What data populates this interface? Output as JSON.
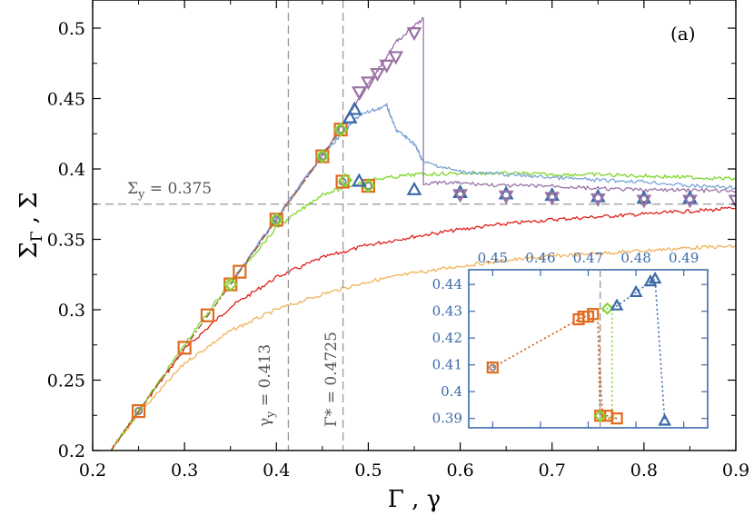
{
  "chart_data": {
    "type": "line",
    "panel_label": "(a)",
    "xlabel_main": "Γ",
    "xlabel_sep": " , ",
    "xlabel_alt": "γ",
    "ylabel_main": "Σ",
    "ylabel_sub": "Γ",
    "ylabel_sep": " , ",
    "ylabel_alt": "Σ",
    "xlim": [
      0.2,
      0.9
    ],
    "ylim": [
      0.2,
      0.52
    ],
    "xticks": [
      0.2,
      0.3,
      0.4,
      0.5,
      0.6,
      0.7,
      0.8,
      0.9
    ],
    "xtick_labels": [
      "0.2",
      "0.3",
      "0.4",
      "0.5",
      "0.6",
      "0.7",
      "0.8",
      "0.9"
    ],
    "yticks": [
      0.2,
      0.25,
      0.3,
      0.35,
      0.4,
      0.45,
      0.5
    ],
    "ytick_labels": [
      "0.2",
      "0.25",
      "0.3",
      "0.35",
      "0.4",
      "0.45",
      "0.5"
    ],
    "reference_lines": {
      "sigma_y": 0.375,
      "gamma_y": 0.413,
      "gamma_star": 0.4725
    },
    "annotations": {
      "sigma_y_main": "Σ",
      "sigma_y_sub": "y",
      "sigma_y_value": " = 0.375",
      "gamma_y_main": "γ",
      "gamma_y_sub": "y",
      "gamma_y_value": " = 0.413",
      "gamma_star_main": "Γ*",
      "gamma_star_value": " = 0.4725"
    },
    "colors": {
      "red": "#e0201b",
      "orange": "#f2b25c",
      "green": "#7fd62a",
      "blue": "#7aa4d6",
      "purple": "#9a72a6",
      "brown": "#9a5c2e",
      "square": "#e06a1e",
      "darkblue": "#3b6aa8",
      "gray": "#888888"
    },
    "series": [
      {
        "name": "red curve",
        "color": "red",
        "style": "noisy",
        "x": [
          0.22,
          0.25,
          0.3,
          0.35,
          0.4,
          0.45,
          0.5,
          0.55,
          0.6,
          0.65,
          0.7,
          0.75,
          0.8,
          0.85,
          0.9
        ],
        "y": [
          0.2,
          0.228,
          0.272,
          0.302,
          0.323,
          0.337,
          0.346,
          0.352,
          0.357,
          0.361,
          0.364,
          0.366,
          0.368,
          0.37,
          0.372
        ]
      },
      {
        "name": "orange curve",
        "color": "orange",
        "style": "noisy",
        "x": [
          0.22,
          0.25,
          0.3,
          0.35,
          0.4,
          0.45,
          0.5,
          0.55,
          0.6,
          0.65,
          0.7,
          0.75,
          0.8,
          0.85,
          0.9
        ],
        "y": [
          0.2,
          0.226,
          0.262,
          0.285,
          0.3,
          0.311,
          0.32,
          0.326,
          0.331,
          0.335,
          0.338,
          0.34,
          0.342,
          0.344,
          0.345
        ]
      },
      {
        "name": "green curve",
        "color": "green",
        "style": "noisy",
        "x": [
          0.22,
          0.25,
          0.3,
          0.35,
          0.4,
          0.45,
          0.5,
          0.55,
          0.6,
          0.65,
          0.7,
          0.75,
          0.8,
          0.85,
          0.9
        ],
        "y": [
          0.2,
          0.228,
          0.275,
          0.32,
          0.358,
          0.382,
          0.392,
          0.396,
          0.397,
          0.397,
          0.396,
          0.396,
          0.395,
          0.394,
          0.393
        ]
      },
      {
        "name": "blue curve",
        "color": "blue",
        "style": "noisy",
        "x": [
          0.35,
          0.4,
          0.45,
          0.49,
          0.52,
          0.53,
          0.55,
          0.56,
          0.6,
          0.65,
          0.7,
          0.75,
          0.8,
          0.85,
          0.9
        ],
        "y": [
          0.318,
          0.365,
          0.41,
          0.438,
          0.445,
          0.428,
          0.418,
          0.405,
          0.398,
          0.396,
          0.394,
          0.392,
          0.391,
          0.388,
          0.387
        ]
      },
      {
        "name": "purple curve",
        "color": "purple",
        "style": "noisy",
        "x": [
          0.35,
          0.4,
          0.45,
          0.5,
          0.53,
          0.56,
          0.56,
          0.6,
          0.65,
          0.7,
          0.75,
          0.8,
          0.85,
          0.9
        ],
        "y": [
          0.318,
          0.364,
          0.41,
          0.46,
          0.49,
          0.507,
          0.39,
          0.39,
          0.388,
          0.388,
          0.386,
          0.385,
          0.385,
          0.384
        ]
      },
      {
        "name": "dash-dot brown",
        "color": "brown",
        "style": "dashdot",
        "x": [
          0.22,
          0.25,
          0.3,
          0.35,
          0.4,
          0.45,
          0.47
        ],
        "y": [
          0.2,
          0.228,
          0.273,
          0.318,
          0.364,
          0.409,
          0.428
        ]
      }
    ],
    "markers": [
      {
        "name": "squares",
        "shape": "square",
        "color": "square",
        "x": [
          0.25,
          0.3,
          0.325,
          0.35,
          0.36,
          0.4,
          0.45,
          0.47,
          0.472,
          0.5
        ],
        "y": [
          0.228,
          0.273,
          0.296,
          0.318,
          0.327,
          0.364,
          0.409,
          0.428,
          0.391,
          0.388
        ]
      },
      {
        "name": "circles",
        "shape": "circle",
        "color": "gray",
        "x": [
          0.25,
          0.4,
          0.45,
          0.47,
          0.472,
          0.5,
          0.6,
          0.7,
          0.8
        ],
        "y": [
          0.228,
          0.364,
          0.409,
          0.428,
          0.391,
          0.388,
          0.382,
          0.38,
          0.379
        ]
      },
      {
        "name": "diamonds",
        "shape": "diamond",
        "color": "green",
        "x": [
          0.35,
          0.4,
          0.45,
          0.47,
          0.475,
          0.5
        ],
        "y": [
          0.318,
          0.364,
          0.409,
          0.428,
          0.392,
          0.388
        ]
      },
      {
        "name": "triangles up",
        "shape": "tri-up",
        "color": "darkblue",
        "x": [
          0.48,
          0.485,
          0.49,
          0.55,
          0.6,
          0.65,
          0.7,
          0.75,
          0.8,
          0.85
        ],
        "y": [
          0.436,
          0.442,
          0.391,
          0.385,
          0.383,
          0.382,
          0.381,
          0.38,
          0.379,
          0.379
        ]
      },
      {
        "name": "triangles down",
        "shape": "tri-down",
        "color": "purple",
        "x": [
          0.49,
          0.5,
          0.51,
          0.52,
          0.53,
          0.55,
          0.6,
          0.65,
          0.7,
          0.75,
          0.8,
          0.85,
          0.9
        ],
        "y": [
          0.455,
          0.462,
          0.468,
          0.474,
          0.48,
          0.497,
          0.382,
          0.381,
          0.38,
          0.379,
          0.378,
          0.378,
          0.378
        ]
      }
    ],
    "inset": {
      "xlim": [
        0.445,
        0.495
      ],
      "ylim": [
        0.3865,
        0.4455
      ],
      "xticks": [
        0.45,
        0.46,
        0.47,
        0.48,
        0.49
      ],
      "xtick_labels": [
        "0.45",
        "0.46",
        "0.47",
        "0.48",
        "0.49"
      ],
      "yticks": [
        0.39,
        0.4,
        0.41,
        0.42,
        0.43,
        0.44
      ],
      "ytick_labels": [
        "0.39",
        "0.4",
        "0.41",
        "0.42",
        "0.43",
        "0.44"
      ],
      "vline": 0.4725,
      "series": [
        {
          "name": "brown dotted",
          "color": "brown",
          "x": [
            0.45,
            0.468,
            0.469,
            0.47,
            0.471,
            0.472,
            0.4725,
            0.474,
            0.476
          ],
          "y": [
            0.409,
            0.427,
            0.428,
            0.428,
            0.429,
            0.429,
            0.391,
            0.391,
            0.39
          ]
        },
        {
          "name": "orange dotted",
          "color": "square",
          "x": [
            0.45,
            0.468,
            0.469,
            0.47,
            0.471,
            0.472,
            0.473,
            0.474,
            0.476
          ],
          "y": [
            0.409,
            0.427,
            0.428,
            0.428,
            0.429,
            0.429,
            0.391,
            0.39,
            0.39
          ]
        },
        {
          "name": "green dotted",
          "color": "green",
          "x": [
            0.473,
            0.474,
            0.475,
            0.475,
            0.4755,
            0.474,
            0.473
          ],
          "y": [
            0.43,
            0.431,
            0.432,
            0.391,
            0.391,
            0.39,
            0.391
          ]
        },
        {
          "name": "blue dotted",
          "color": "darkblue",
          "x": [
            0.475,
            0.476,
            0.48,
            0.483,
            0.484,
            0.486
          ],
          "y": [
            0.431,
            0.432,
            0.437,
            0.441,
            0.442,
            0.389
          ]
        }
      ],
      "markers": [
        {
          "shape": "circle",
          "color": "gray",
          "x": [
            0.45
          ],
          "y": [
            0.409
          ]
        },
        {
          "shape": "square",
          "color": "square",
          "x": [
            0.45,
            0.468,
            0.469,
            0.47,
            0.471,
            0.4725,
            0.474,
            0.476
          ],
          "y": [
            0.409,
            0.427,
            0.428,
            0.428,
            0.429,
            0.391,
            0.391,
            0.39
          ]
        },
        {
          "shape": "diamond",
          "color": "green",
          "x": [
            0.474,
            0.4725
          ],
          "y": [
            0.431,
            0.391
          ]
        },
        {
          "shape": "tri-up",
          "color": "darkblue",
          "x": [
            0.476,
            0.48,
            0.483,
            0.484,
            0.486
          ],
          "y": [
            0.432,
            0.437,
            0.441,
            0.442,
            0.389
          ]
        }
      ]
    }
  }
}
